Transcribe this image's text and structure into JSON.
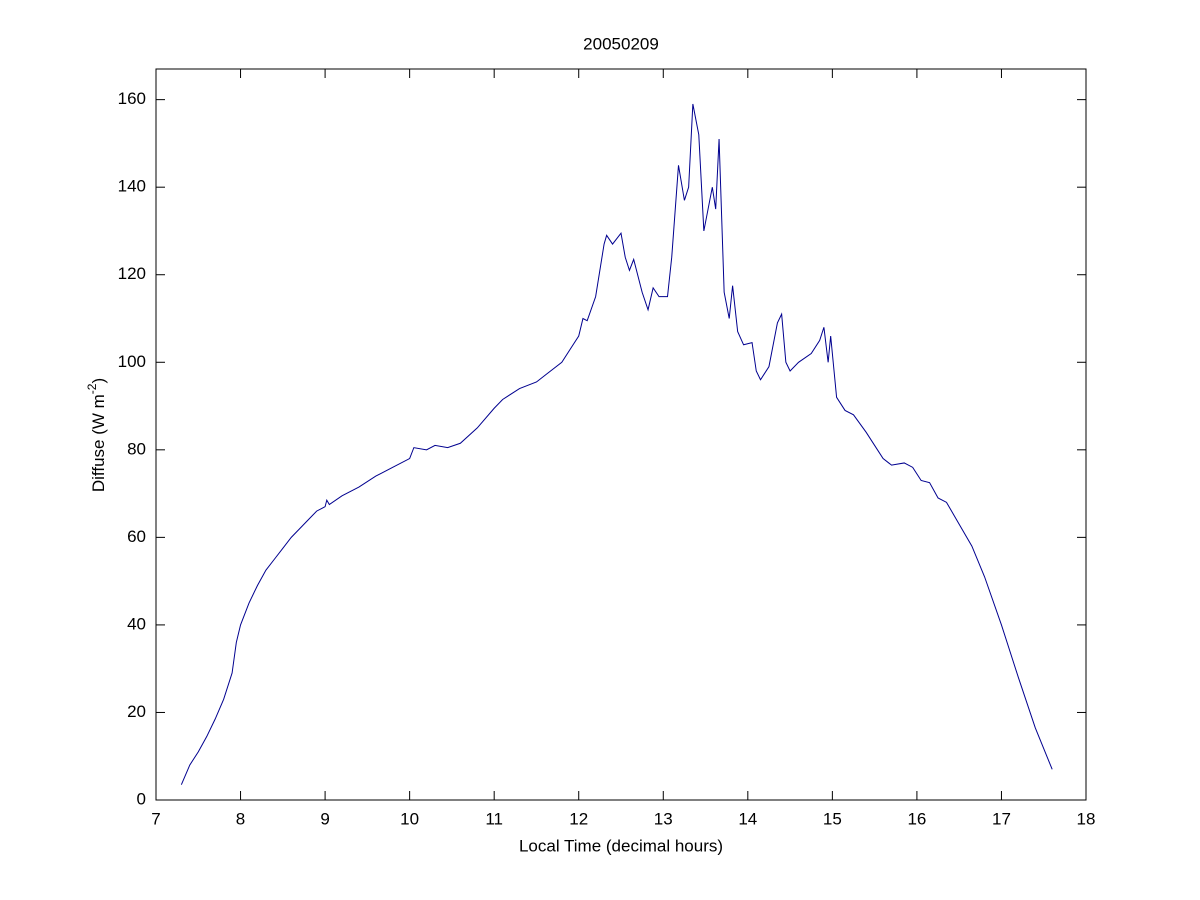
{
  "chart_data": {
    "type": "line",
    "title": "20050209",
    "xlabel": "Local Time (decimal hours)",
    "ylabel": {
      "text": "Diffuse (W m",
      "superscript": "-2",
      "suffix": ")"
    },
    "xlim": [
      7,
      18
    ],
    "ylim": [
      0,
      167
    ],
    "xticks": [
      7,
      8,
      9,
      10,
      11,
      12,
      13,
      14,
      15,
      16,
      17,
      18
    ],
    "yticks": [
      0,
      20,
      40,
      60,
      80,
      100,
      120,
      140,
      160
    ],
    "grid": false,
    "x": [
      7.3,
      7.4,
      7.5,
      7.6,
      7.7,
      7.8,
      7.9,
      7.95,
      8.0,
      8.1,
      8.2,
      8.3,
      8.4,
      8.5,
      8.6,
      8.7,
      8.8,
      8.9,
      9.0,
      9.02,
      9.05,
      9.2,
      9.4,
      9.6,
      9.8,
      10.0,
      10.05,
      10.2,
      10.3,
      10.45,
      10.6,
      10.8,
      11.0,
      11.1,
      11.3,
      11.5,
      11.6,
      11.8,
      11.9,
      12.0,
      12.05,
      12.1,
      12.2,
      12.3,
      12.33,
      12.4,
      12.5,
      12.55,
      12.6,
      12.65,
      12.75,
      12.82,
      12.88,
      12.95,
      13.05,
      13.1,
      13.18,
      13.25,
      13.3,
      13.35,
      13.42,
      13.48,
      13.55,
      13.58,
      13.62,
      13.66,
      13.72,
      13.78,
      13.82,
      13.88,
      13.95,
      14.05,
      14.1,
      14.15,
      14.25,
      14.35,
      14.4,
      14.45,
      14.5,
      14.6,
      14.75,
      14.85,
      14.9,
      14.95,
      14.98,
      15.05,
      15.15,
      15.25,
      15.4,
      15.5,
      15.6,
      15.7,
      15.85,
      15.95,
      16.05,
      16.15,
      16.25,
      16.35,
      16.5,
      16.65,
      16.8,
      17.0,
      17.2,
      17.4,
      17.6
    ],
    "series": [
      {
        "color": "#00008f",
        "values": [
          3.5,
          8,
          11,
          14.5,
          18.5,
          23,
          29,
          36,
          40,
          45,
          49,
          52.5,
          55,
          57.5,
          60,
          62,
          64,
          66,
          67,
          68.5,
          67.5,
          69.5,
          71.5,
          74,
          76,
          78,
          80.5,
          80,
          81,
          80.5,
          81.5,
          85,
          89.5,
          91.5,
          94,
          95.5,
          97,
          100,
          103,
          106,
          110,
          109.5,
          115,
          127,
          129,
          127,
          129.5,
          124,
          121,
          123.5,
          116,
          112,
          117,
          115,
          115,
          124,
          145,
          137,
          140,
          159,
          152,
          130,
          137,
          140,
          135,
          151,
          116,
          110,
          117.5,
          107,
          104,
          104.5,
          98,
          96,
          99,
          109,
          111,
          100,
          98,
          100,
          102,
          105,
          108,
          100,
          106,
          92,
          89,
          88,
          84,
          81,
          78,
          76.5,
          77,
          76,
          73,
          72.5,
          69,
          68,
          63,
          58,
          51,
          40,
          28,
          16.5,
          7
        ]
      }
    ]
  }
}
